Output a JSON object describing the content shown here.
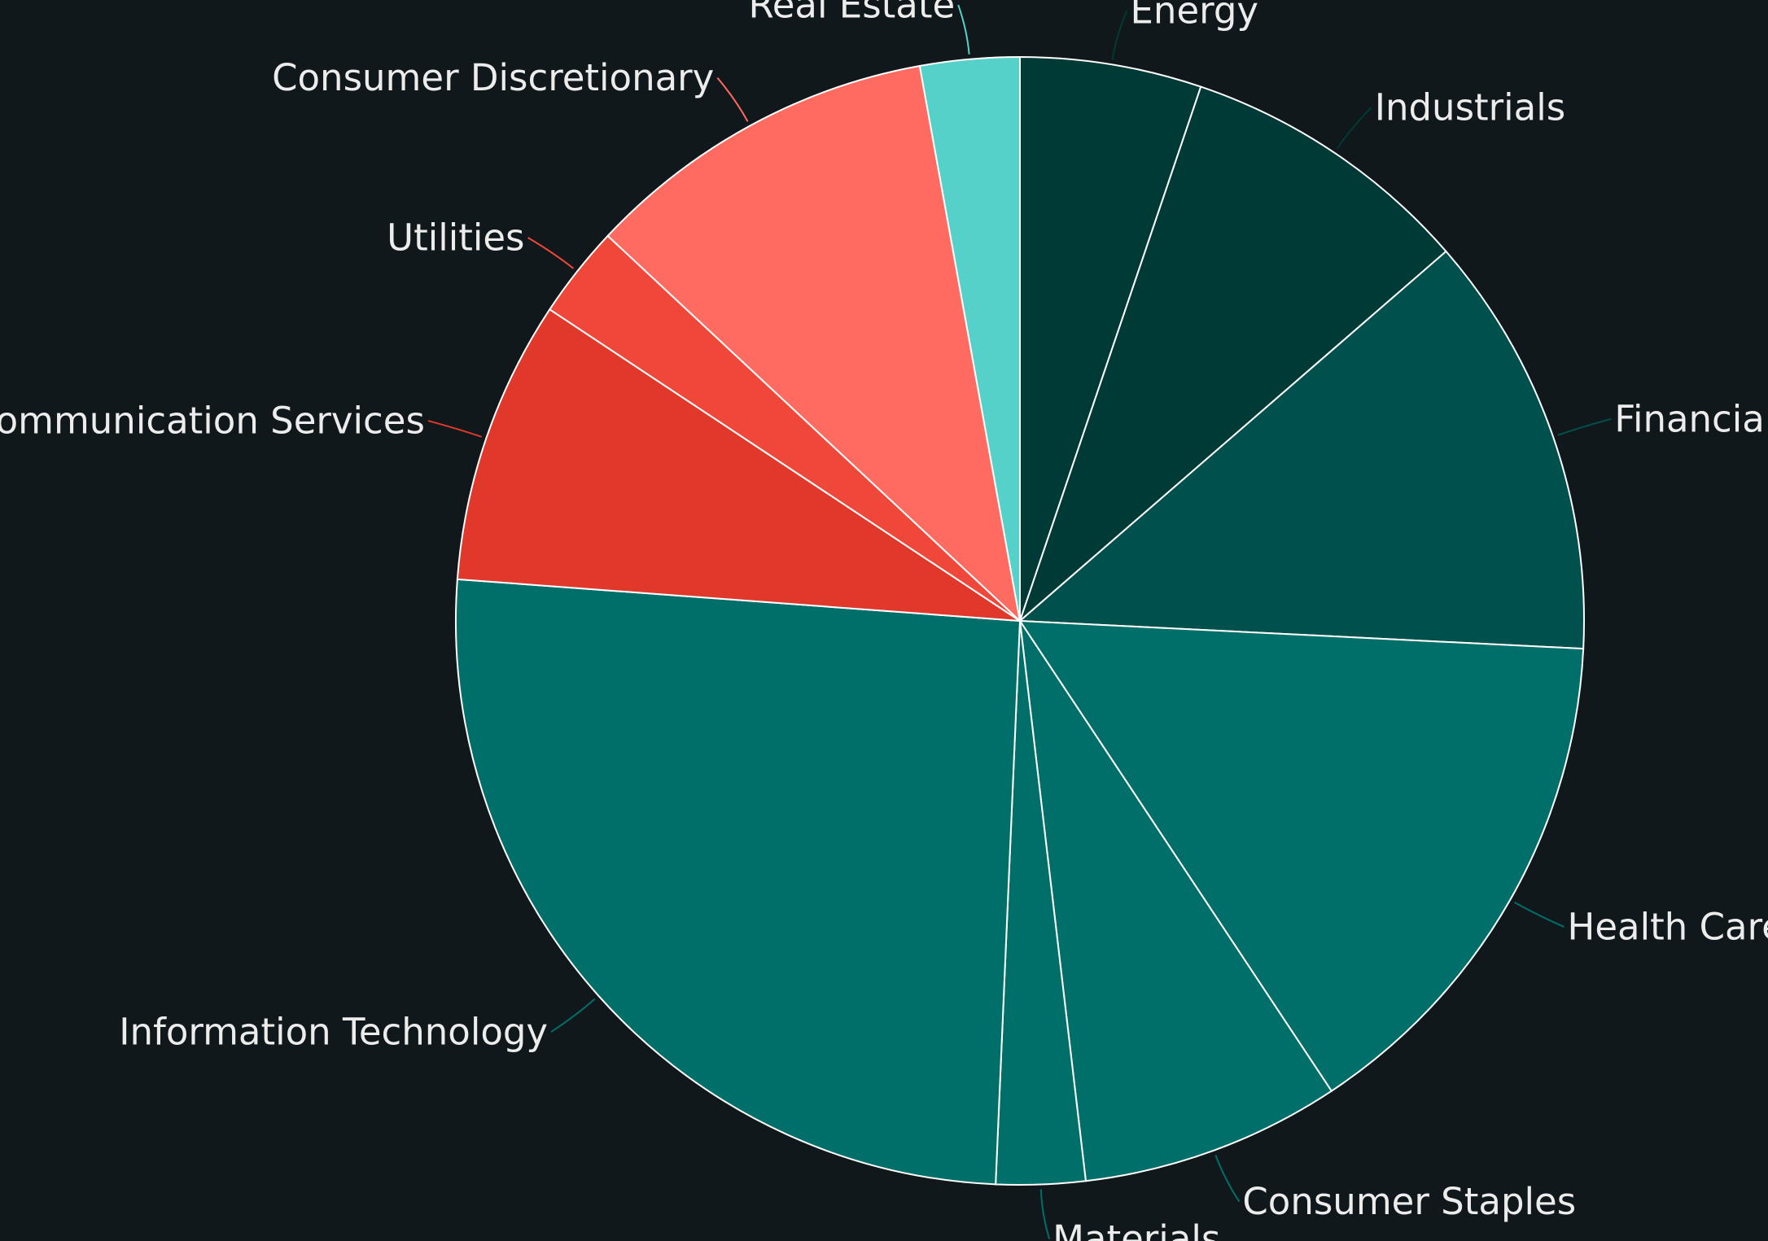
{
  "chart_data": {
    "type": "pie",
    "title": "",
    "start_angle_deg": 90,
    "direction": "clockwise",
    "slices": [
      {
        "label": "Energy",
        "value": 5.3,
        "color": "#003a36"
      },
      {
        "label": "Industrials",
        "value": 8.6,
        "color": "#003a36"
      },
      {
        "label": "Financials",
        "value": 12.4,
        "color": "#00514e"
      },
      {
        "label": "Health Care",
        "value": 15.2,
        "color": "#006f69"
      },
      {
        "label": "Consumer Staples",
        "value": 7.6,
        "color": "#006f69"
      },
      {
        "label": "Materials",
        "value": 2.6,
        "color": "#006f69"
      },
      {
        "label": "Information Technology",
        "value": 26.0,
        "color": "#006f69"
      },
      {
        "label": "Communication Services",
        "value": 8.3,
        "color": "#e0382b"
      },
      {
        "label": "Utilities",
        "value": 2.7,
        "color": "#ef473a"
      },
      {
        "label": "Consumer Discretionary",
        "value": 10.4,
        "color": "#ff6b61"
      },
      {
        "label": "Real Estate",
        "value": 2.9,
        "color": "#56d1c9"
      }
    ]
  },
  "colors": {
    "background": "#10181b",
    "slice_border": "#ffffff",
    "label_text": "#ececec"
  }
}
